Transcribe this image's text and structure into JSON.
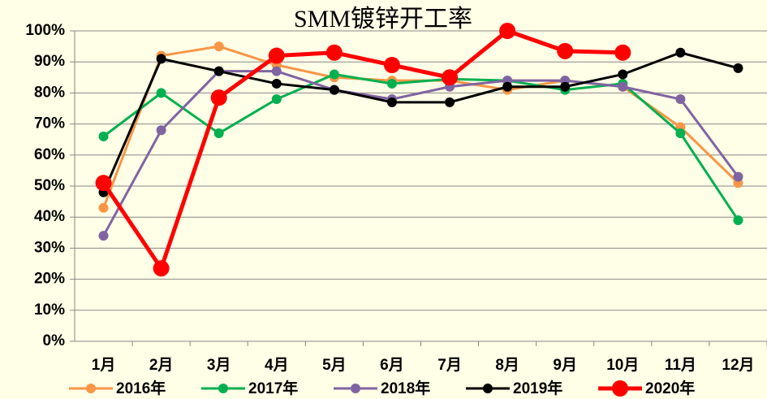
{
  "chart_data": {
    "type": "line",
    "title": "SMM镀锌开工率",
    "categories": [
      "1月",
      "2月",
      "3月",
      "4月",
      "5月",
      "6月",
      "7月",
      "8月",
      "9月",
      "10月",
      "11月",
      "12月"
    ],
    "series": [
      {
        "name": "2016年",
        "color": "#f79646",
        "values": [
          43,
          92,
          95,
          89,
          85,
          84,
          84,
          81,
          84,
          82,
          69,
          51
        ]
      },
      {
        "name": "2017年",
        "color": "#00b050",
        "values": [
          66,
          80,
          67,
          78,
          86,
          83,
          84.5,
          84,
          81,
          83,
          67,
          39
        ]
      },
      {
        "name": "2018年",
        "color": "#8064a2",
        "values": [
          34,
          68,
          87,
          87,
          81,
          78,
          82,
          84,
          84,
          82,
          78,
          53
        ]
      },
      {
        "name": "2019年",
        "color": "#000000",
        "values": [
          48,
          91,
          87,
          83,
          81,
          77,
          77,
          82,
          82,
          86,
          93,
          88
        ]
      },
      {
        "name": "2020年",
        "color": "#ff0000",
        "values": [
          51,
          23.5,
          78.5,
          92,
          93,
          89,
          85,
          100,
          93.5,
          93,
          null,
          null
        ]
      }
    ],
    "ylim": [
      0,
      100
    ],
    "yticks": [
      {
        "value": 0,
        "label": "0%"
      },
      {
        "value": 10,
        "label": "10%"
      },
      {
        "value": 20,
        "label": "20%"
      },
      {
        "value": 30,
        "label": "30%"
      },
      {
        "value": 40,
        "label": "40%"
      },
      {
        "value": 50,
        "label": "50%"
      },
      {
        "value": 60,
        "label": "60%"
      },
      {
        "value": 70,
        "label": "70%"
      },
      {
        "value": 80,
        "label": "80%"
      },
      {
        "value": 90,
        "label": "90%"
      },
      {
        "value": 100,
        "label": "100%"
      }
    ],
    "grid": true,
    "legend": "bottom"
  }
}
